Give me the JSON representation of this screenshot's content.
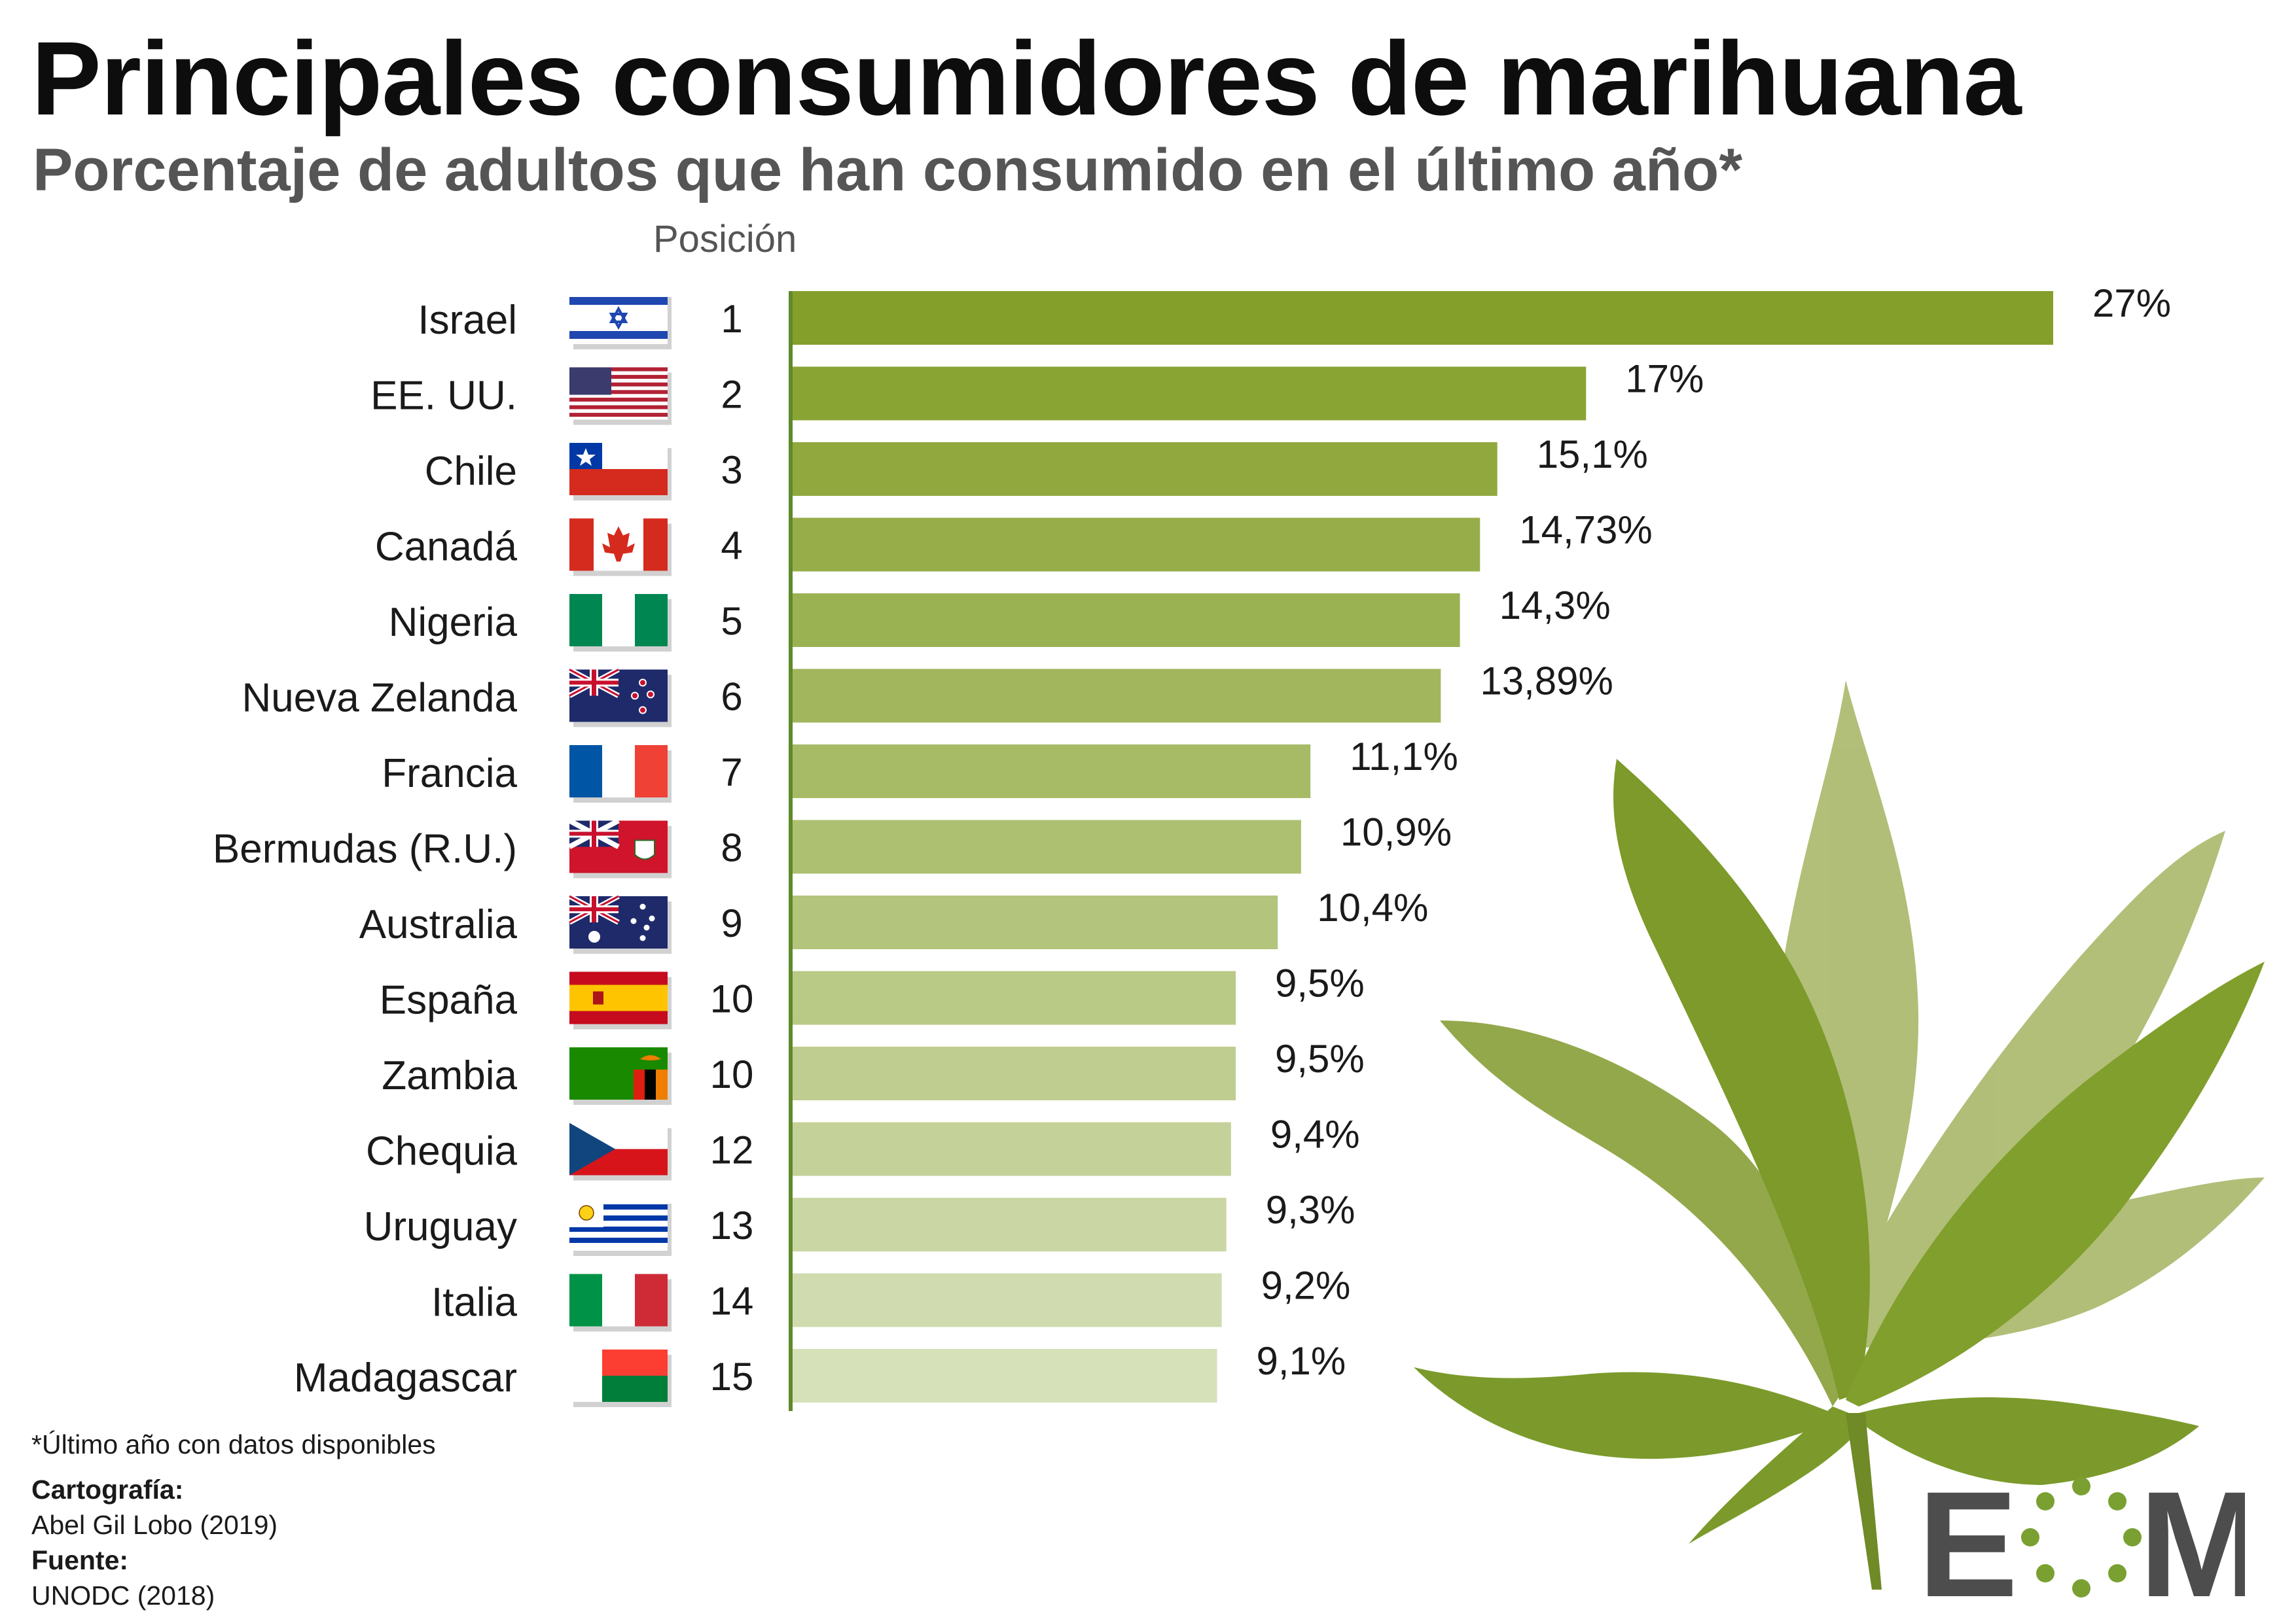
{
  "title": "Principales consumidores de marihuana",
  "subtitle": "Porcentaje de adultos que han consumido en el último año*",
  "position_header": "Posición",
  "footnote": "*Último año con datos disponibles",
  "credits": {
    "cartography_label": "Cartografía:",
    "cartography_value": "Abel Gil Lobo (2019)",
    "source_label": "Fuente:",
    "source_value": "UNODC (2018)"
  },
  "logo": {
    "letter_left": "E",
    "letter_right": "M",
    "accent_color": "#7aa031",
    "text_color": "#4d4d4d"
  },
  "chart_data": {
    "type": "bar",
    "orientation": "horizontal",
    "title": "Principales consumidores de marihuana",
    "subtitle": "Porcentaje de adultos que han consumido en el último año*",
    "unit": "%",
    "xlim": [
      0,
      27
    ],
    "categories": [
      "Israel",
      "EE. UU.",
      "Chile",
      "Canadá",
      "Nigeria",
      "Nueva Zelanda",
      "Francia",
      "Bermudas (R.U.)",
      "Australia",
      "España",
      "Zambia",
      "Chequia",
      "Uruguay",
      "Italia",
      "Madagascar"
    ],
    "positions": [
      "1",
      "2",
      "3",
      "4",
      "5",
      "6",
      "7",
      "8",
      "9",
      "10",
      "10",
      "12",
      "13",
      "14",
      "15"
    ],
    "values": [
      27,
      17,
      15.1,
      14.73,
      14.3,
      13.89,
      11.1,
      10.9,
      10.4,
      9.5,
      9.5,
      9.4,
      9.3,
      9.2,
      9.1
    ],
    "value_labels": [
      "27%",
      "17%",
      "15,1%",
      "14,73%",
      "14,3%",
      "13,89%",
      "11,1%",
      "10,9%",
      "10,4%",
      "9,5%",
      "9,5%",
      "9,4%",
      "9,3%",
      "9,2%",
      "9,1%"
    ],
    "flags": [
      "israel-flag",
      "usa-flag",
      "chile-flag",
      "canada-flag",
      "nigeria-flag",
      "new-zealand-flag",
      "france-flag",
      "bermuda-flag",
      "australia-flag",
      "spain-flag",
      "zambia-flag",
      "czechia-flag",
      "uruguay-flag",
      "italy-flag",
      "madagascar-flag"
    ],
    "bar_color_start": "#849f2a",
    "bar_color_end": "#d6e0b9"
  }
}
